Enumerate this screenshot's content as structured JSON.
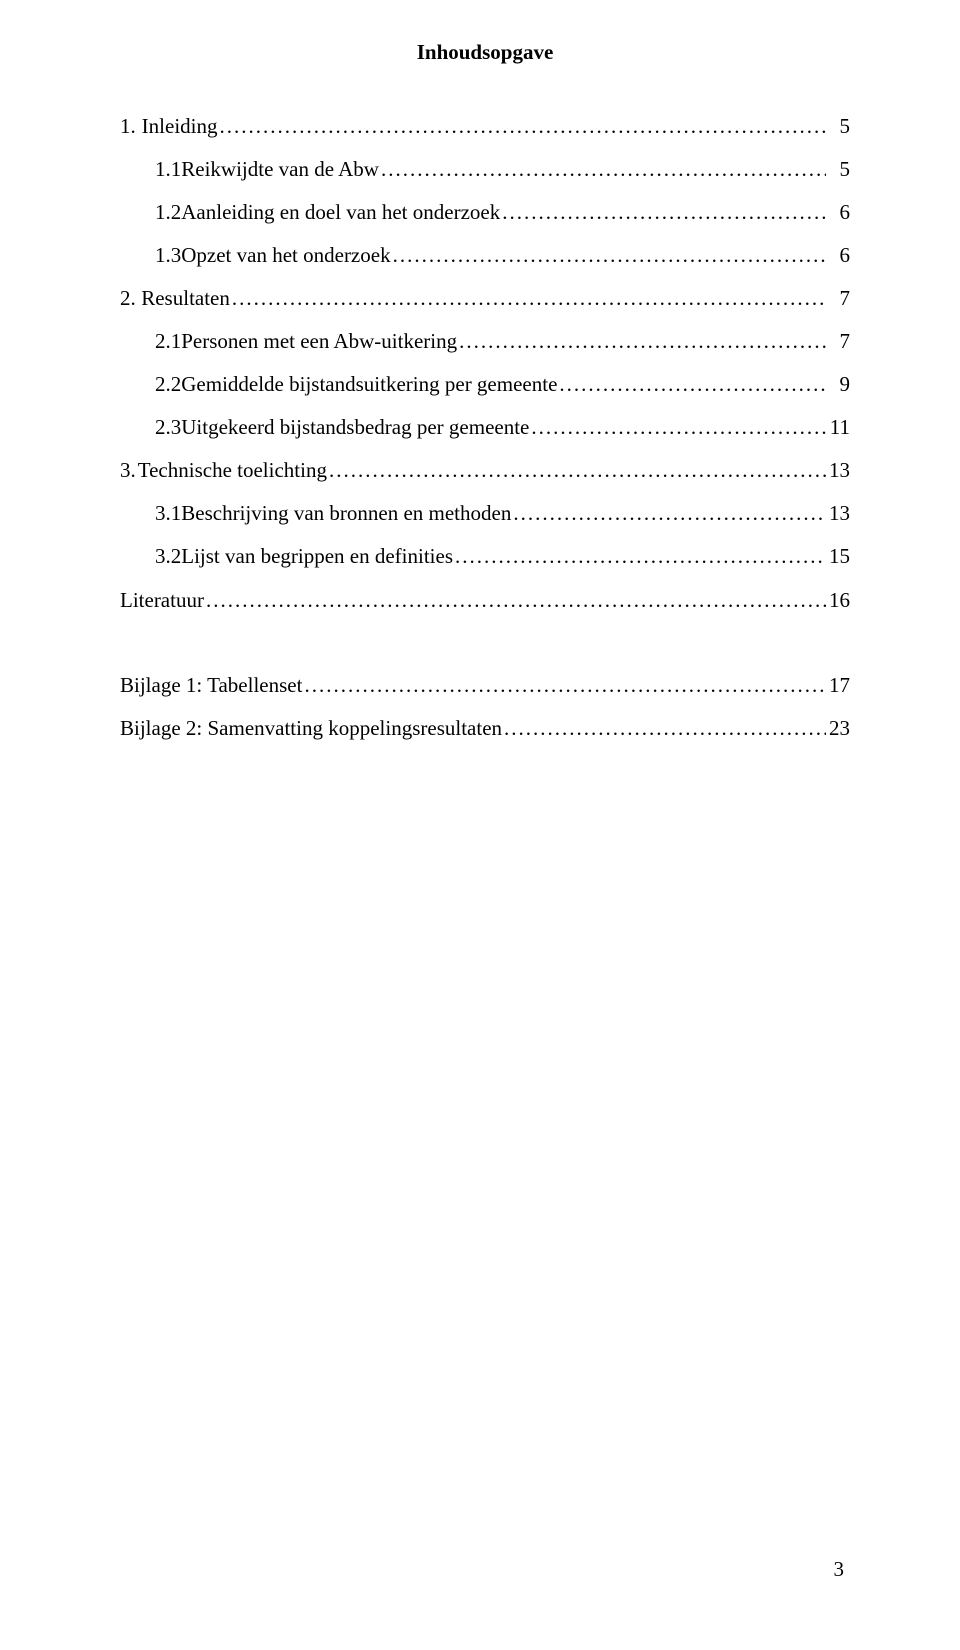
{
  "document": {
    "title": "Inhoudsopgave",
    "page_number": "3",
    "background_color": "#ffffff",
    "text_color": "#000000",
    "font_family": "Times New Roman",
    "title_fontsize_pt": 16,
    "body_fontsize_pt": 16,
    "title_weight": "bold"
  },
  "toc": {
    "entries": [
      {
        "level": 1,
        "num": "1.",
        "label": "Inleiding",
        "page": "5"
      },
      {
        "level": 2,
        "num": "1.1",
        "label": "Reikwijdte van de Abw",
        "page": "5"
      },
      {
        "level": 2,
        "num": "1.2",
        "label": "Aanleiding en doel van het onderzoek",
        "page": "6"
      },
      {
        "level": 2,
        "num": "1.3",
        "label": "Opzet van het onderzoek",
        "page": "6"
      },
      {
        "level": 1,
        "num": "2.",
        "label": "Resultaten",
        "page": "7"
      },
      {
        "level": 2,
        "num": "2.1",
        "label": "Personen met een Abw-uitkering",
        "page": "7"
      },
      {
        "level": 2,
        "num": "2.2",
        "label": "Gemiddelde bijstandsuitkering per gemeente",
        "page": "9"
      },
      {
        "level": 2,
        "num": "2.3",
        "label": "Uitgekeerd bijstandsbedrag per gemeente",
        "page": "11"
      },
      {
        "level": 1,
        "num": "3.",
        "label": "Technische toelichting",
        "page": "13"
      },
      {
        "level": 2,
        "num": "3.1",
        "label": "Beschrijving van bronnen en methoden",
        "page": "13"
      },
      {
        "level": 2,
        "num": "3.2",
        "label": "Lijst van begrippen en definities",
        "page": "15"
      },
      {
        "level": 1,
        "num": "",
        "label": "Literatuur",
        "page": "16"
      }
    ],
    "appendix": [
      {
        "level": 1,
        "num": "",
        "label": "Bijlage 1: Tabellenset",
        "page": "17"
      },
      {
        "level": 1,
        "num": "",
        "label": "Bijlage 2: Samenvatting koppelingsresultaten",
        "page": "23"
      }
    ]
  }
}
